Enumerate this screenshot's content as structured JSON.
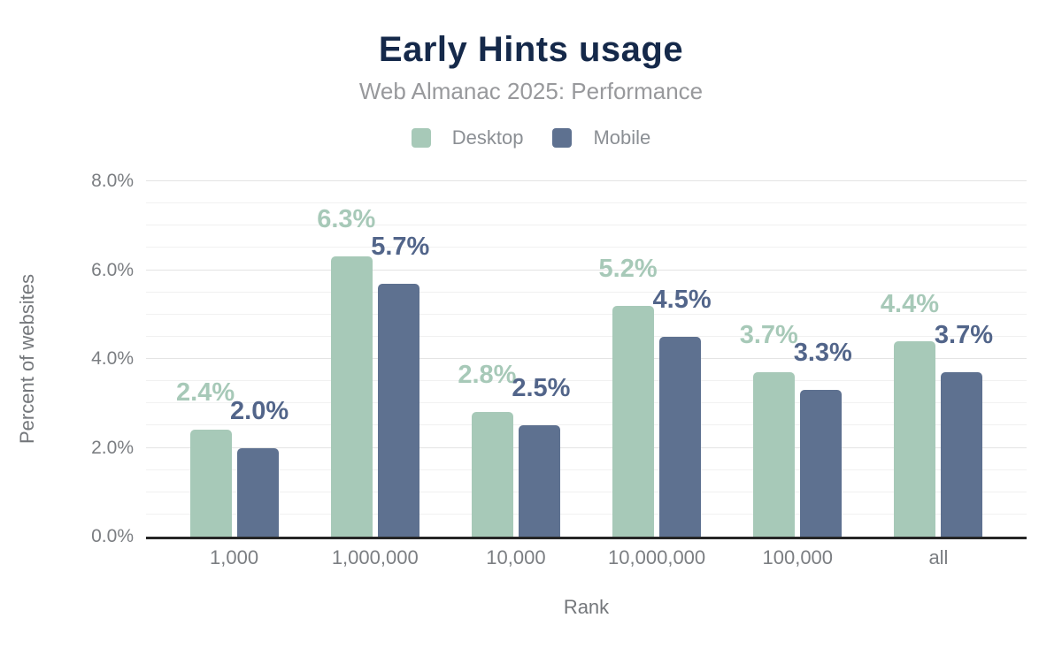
{
  "chart_data": {
    "type": "bar",
    "title": "Early Hints usage",
    "subtitle": "Web Almanac 2025: Performance",
    "categories": [
      "1,000",
      "1,000,000",
      "10,000",
      "10,000,000",
      "100,000",
      "all"
    ],
    "series": [
      {
        "name": "Desktop",
        "color": "#a7c9b8",
        "label_color": "#a7c9b8",
        "values": [
          2.4,
          6.3,
          2.8,
          5.2,
          3.7,
          4.4
        ],
        "data_labels": [
          "2.4%",
          "6.3%",
          "2.8%",
          "5.2%",
          "3.7%",
          "4.4%"
        ]
      },
      {
        "name": "Mobile",
        "color": "#5e7190",
        "label_color": "#52658a",
        "values": [
          2.0,
          5.7,
          2.5,
          4.5,
          3.3,
          3.7
        ],
        "data_labels": [
          "2.0%",
          "5.7%",
          "2.5%",
          "4.5%",
          "3.3%",
          "3.7%"
        ]
      }
    ],
    "xlabel": "Rank",
    "ylabel": "Percent of websites",
    "ylim": [
      0,
      8
    ],
    "ytick_step_major": 2,
    "ytick_step_minor": 0.5,
    "ytick_labels": [
      "0.0%",
      "2.0%",
      "4.0%",
      "6.0%",
      "8.0%"
    ],
    "grid": true,
    "legend_position": "top",
    "axis_line_color": "#262626",
    "title_color": "#15294a",
    "subtitle_color": "#98999c"
  }
}
